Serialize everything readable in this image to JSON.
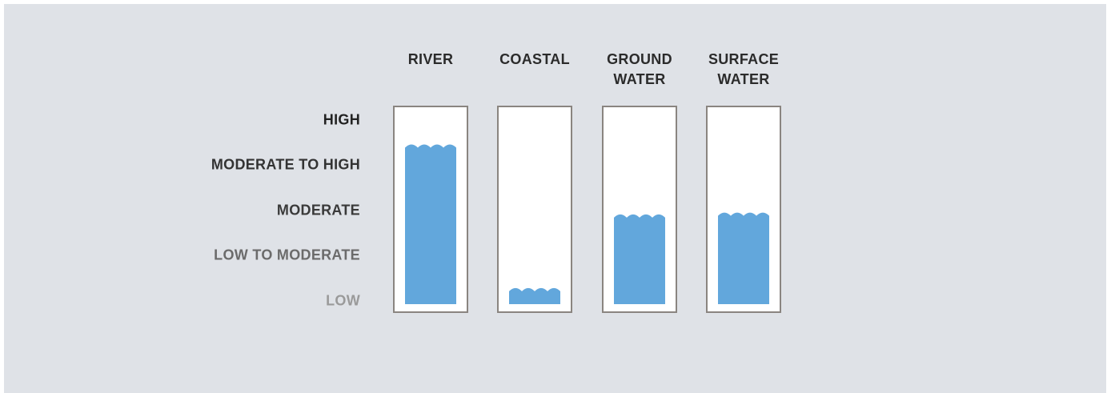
{
  "chart_data": {
    "type": "bar",
    "levels": [
      "HIGH",
      "MODERATE TO HIGH",
      "MODERATE",
      "LOW TO MODERATE",
      "LOW"
    ],
    "level_colors": [
      "#222222",
      "#333333",
      "#3a3a3a",
      "#6b6b6b",
      "#9a9a9a"
    ],
    "categories": [
      {
        "lines": [
          "RIVER"
        ]
      },
      {
        "lines": [
          "COASTAL"
        ]
      },
      {
        "lines": [
          "GROUND",
          "WATER"
        ]
      },
      {
        "lines": [
          "SURFACE",
          "WATER"
        ]
      }
    ],
    "values": [
      0.85,
      0.07,
      0.47,
      0.48
    ],
    "value_scale": "fraction of gauge height from LOW to HIGH",
    "colors": {
      "water": "#62a7dc",
      "gauge_border": "#8a8580",
      "gauge_fill": "#ffffff",
      "background": "#dfe2e7"
    }
  }
}
